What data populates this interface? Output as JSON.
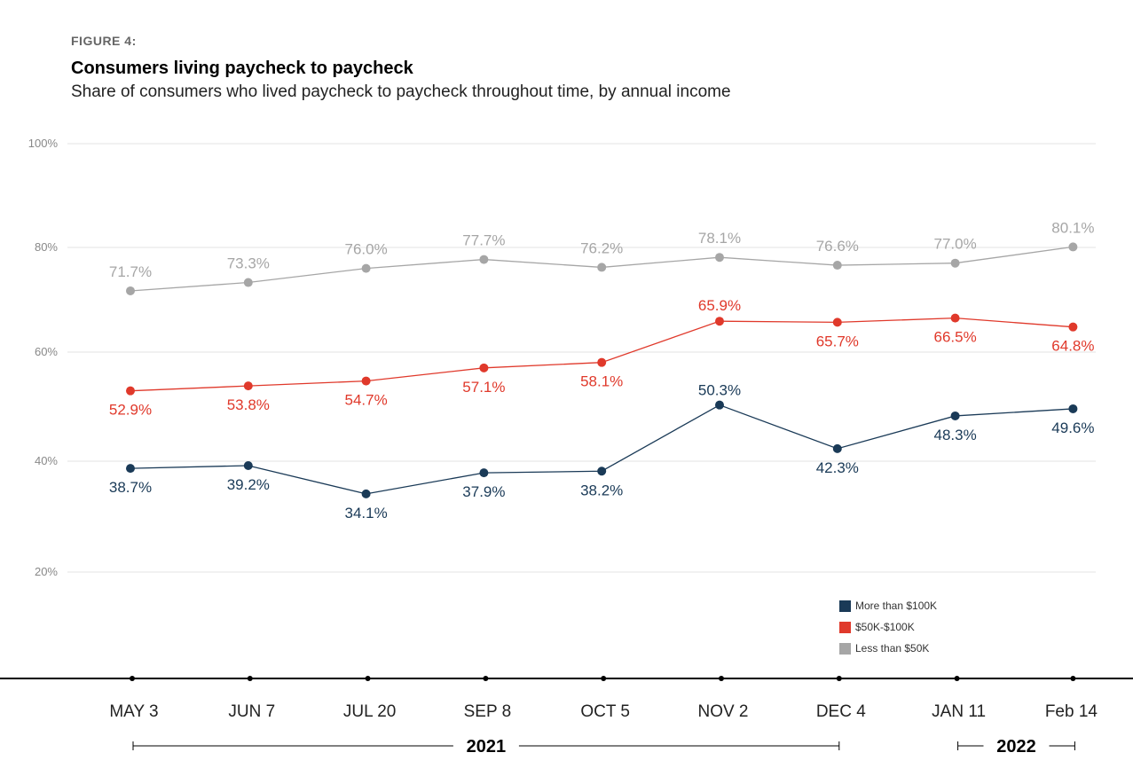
{
  "header": {
    "figure_label": "FIGURE 4:",
    "title": "Consumers living paycheck to paycheck",
    "subtitle": "Share of consumers who lived paycheck to paycheck throughout time, by annual income"
  },
  "colors": {
    "more_than_100k": "#1a3a57",
    "mid_50k_100k": "#e0392b",
    "less_than_50k": "#a6a6a6",
    "grid": "#e3e3e3",
    "axis": "#000000"
  },
  "chart_data": {
    "type": "line",
    "title": "Consumers living paycheck to paycheck",
    "subtitle": "Share of consumers who lived paycheck to paycheck throughout time, by annual income",
    "xlabel": "",
    "ylabel": "",
    "categories": [
      "MAY 3",
      "JUN 7",
      "JUL 20",
      "SEP 8",
      "OCT 5",
      "NOV 2",
      "DEC 4",
      "JAN 11",
      "Feb 14"
    ],
    "y_ticks": [
      "100%",
      "80%",
      "60%",
      "40%",
      "20%"
    ],
    "series": [
      {
        "name": "Less than $50K",
        "key": "less_than_50k",
        "values": [
          71.7,
          73.3,
          76.0,
          77.7,
          76.2,
          78.1,
          76.6,
          77.0,
          80.1
        ],
        "labels": [
          "71.7%",
          "73.3%",
          "76.0%",
          "77.7%",
          "76.2%",
          "78.1%",
          "76.6%",
          "77.0%",
          "80.1%"
        ]
      },
      {
        "name": "$50K-$100K",
        "key": "mid_50k_100k",
        "values": [
          52.9,
          53.8,
          54.7,
          57.1,
          58.1,
          65.9,
          65.7,
          66.5,
          64.8
        ],
        "labels": [
          "52.9%",
          "53.8%",
          "54.7%",
          "57.1%",
          "58.1%",
          "65.9%",
          "65.7%",
          "66.5%",
          "64.8%"
        ]
      },
      {
        "name": "More than $100K",
        "key": "more_than_100k",
        "values": [
          38.7,
          39.2,
          34.1,
          37.9,
          38.2,
          50.3,
          42.3,
          48.3,
          49.6
        ],
        "labels": [
          "38.7%",
          "39.2%",
          "34.1%",
          "37.9%",
          "38.2%",
          "50.3%",
          "42.3%",
          "48.3%",
          "49.6%"
        ]
      }
    ],
    "legend": {
      "position": "bottom-right",
      "items": [
        "More than $100K",
        "$50K-$100K",
        "Less than $50K"
      ]
    },
    "year_groups": [
      {
        "label": "2021",
        "from": "MAY 3",
        "to": "DEC 4"
      },
      {
        "label": "2022",
        "from": "JAN 11",
        "to": "Feb 14"
      }
    ],
    "ylim": [
      0,
      100
    ],
    "grid": true
  }
}
